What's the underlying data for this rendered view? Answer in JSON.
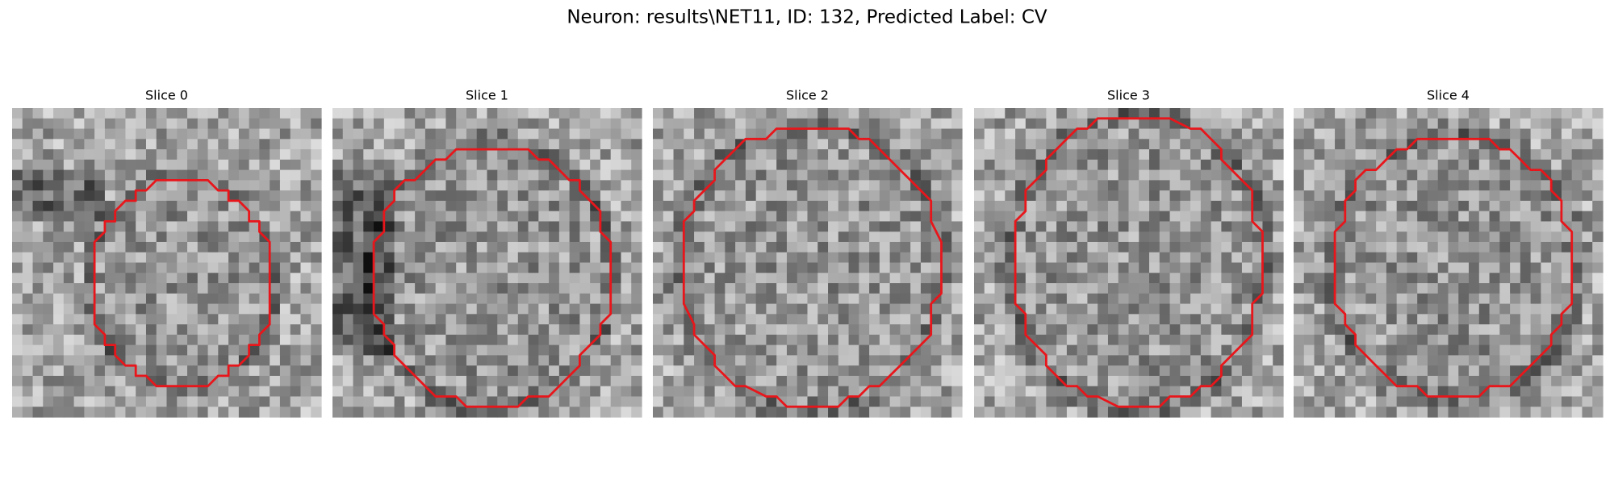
{
  "title": "Neuron: results\\NET11, ID: 132, Predicted Label: CV",
  "panels": [
    {
      "title": "Slice 0"
    },
    {
      "title": "Slice 1"
    },
    {
      "title": "Slice 2"
    },
    {
      "title": "Slice 3"
    },
    {
      "title": "Slice 4"
    }
  ]
}
